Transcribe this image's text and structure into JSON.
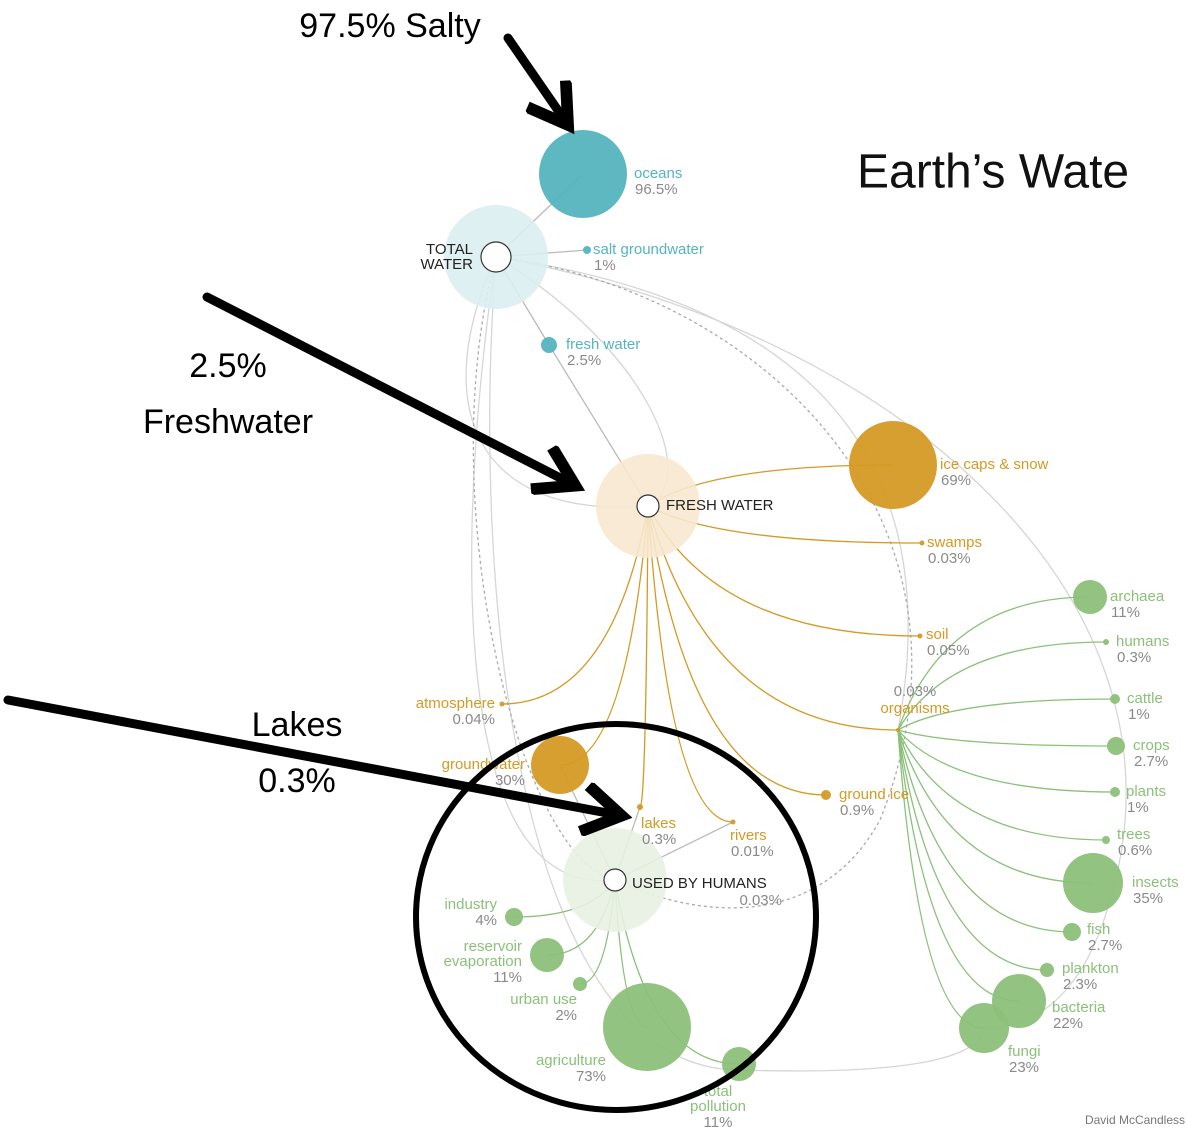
{
  "title": "Earth’s Wate",
  "annotations": [
    {
      "lines": [
        "97.5% Salty"
      ]
    },
    {
      "lines": [
        "2.5%",
        "Freshwater"
      ]
    },
    {
      "lines": [
        "Lakes",
        "0.3%"
      ]
    }
  ],
  "nodes": [
    {
      "label": [
        "TOTAL",
        "WATER"
      ]
    },
    {
      "label": [
        "oceans"
      ],
      "value": "96.5%"
    },
    {
      "label": [
        "salt groundwater"
      ],
      "value": "1%"
    },
    {
      "label": [
        "fresh water"
      ],
      "value": "2.5%"
    },
    {
      "label": [
        "FRESH WATER"
      ]
    },
    {
      "label": [
        "ice caps & snow"
      ],
      "value": "69%"
    },
    {
      "label": [
        "swamps"
      ],
      "value": "0.03%"
    },
    {
      "label": [
        "soil"
      ],
      "value": "0.05%"
    },
    {
      "label": [
        "atmosphere"
      ],
      "value": "0.04%"
    },
    {
      "label": [
        "groundwater"
      ],
      "value": "30%"
    },
    {
      "label": [
        "lakes"
      ],
      "value": "0.3%"
    },
    {
      "label": [
        "rivers"
      ],
      "value": "0.01%"
    },
    {
      "label": [
        "ground ice"
      ],
      "value": "0.9%"
    },
    {
      "label": [
        "organisms"
      ],
      "value": "0.03%"
    },
    {
      "label": [
        "USED BY HUMANS"
      ],
      "value": "0.03%"
    },
    {
      "label": [
        "industry"
      ],
      "value": "4%"
    },
    {
      "label": [
        "reservoir",
        "evaporation"
      ],
      "value": "11%"
    },
    {
      "label": [
        "urban use"
      ],
      "value": "2%"
    },
    {
      "label": [
        "agriculture"
      ],
      "value": "73%"
    },
    {
      "label": [
        "total",
        "pollution"
      ],
      "value": "11%"
    },
    {
      "label": [
        "archaea"
      ],
      "value": "11%"
    },
    {
      "label": [
        "humans"
      ],
      "value": "0.3%"
    },
    {
      "label": [
        "cattle"
      ],
      "value": "1%"
    },
    {
      "label": [
        "crops"
      ],
      "value": "2.7%"
    },
    {
      "label": [
        "plants"
      ],
      "value": "1%"
    },
    {
      "label": [
        "trees"
      ],
      "value": "0.6%"
    },
    {
      "label": [
        "insects"
      ],
      "value": "35%"
    },
    {
      "label": [
        "fish"
      ],
      "value": "2.7%"
    },
    {
      "label": [
        "plankton"
      ],
      "value": "2.3%"
    },
    {
      "label": [
        "bacteria"
      ],
      "value": "22%"
    },
    {
      "label": [
        "fungi"
      ],
      "value": "23%"
    }
  ],
  "credit": "David McCandless"
}
